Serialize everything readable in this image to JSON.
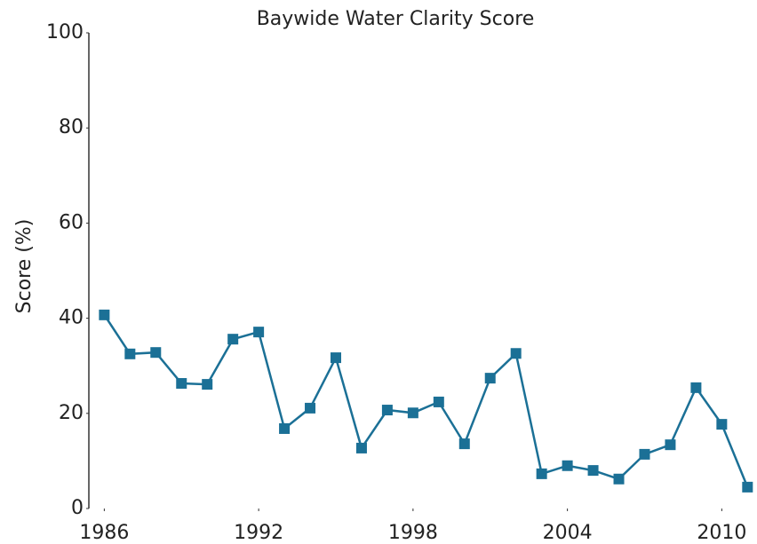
{
  "chart_data": {
    "type": "line",
    "title": "Baywide Water Clarity Score",
    "y_label": "Score (%)",
    "x": [
      1986,
      1987,
      1988,
      1989,
      1990,
      1991,
      1992,
      1993,
      1994,
      1995,
      1996,
      1997,
      1998,
      1999,
      2000,
      2001,
      2002,
      2003,
      2004,
      2005,
      2006,
      2007,
      2008,
      2009,
      2010,
      2011
    ],
    "series": [
      {
        "name": "Score",
        "color": "#1b7096",
        "values": [
          40.7,
          32.5,
          32.8,
          26.3,
          26.1,
          35.6,
          37.1,
          16.8,
          21.1,
          31.7,
          12.7,
          20.7,
          20.1,
          22.4,
          13.6,
          27.4,
          32.6,
          7.3,
          9,
          8,
          6.2,
          11.4,
          13.4,
          25.4,
          17.7,
          4.5
        ]
      }
    ],
    "xlim": [
      1985.4,
      2011.3
    ],
    "xticks": [
      1986,
      1992,
      1998,
      2004,
      2010
    ],
    "ylim": [
      0,
      100
    ],
    "yticks": [
      0,
      20,
      40,
      60,
      80,
      100
    ]
  }
}
